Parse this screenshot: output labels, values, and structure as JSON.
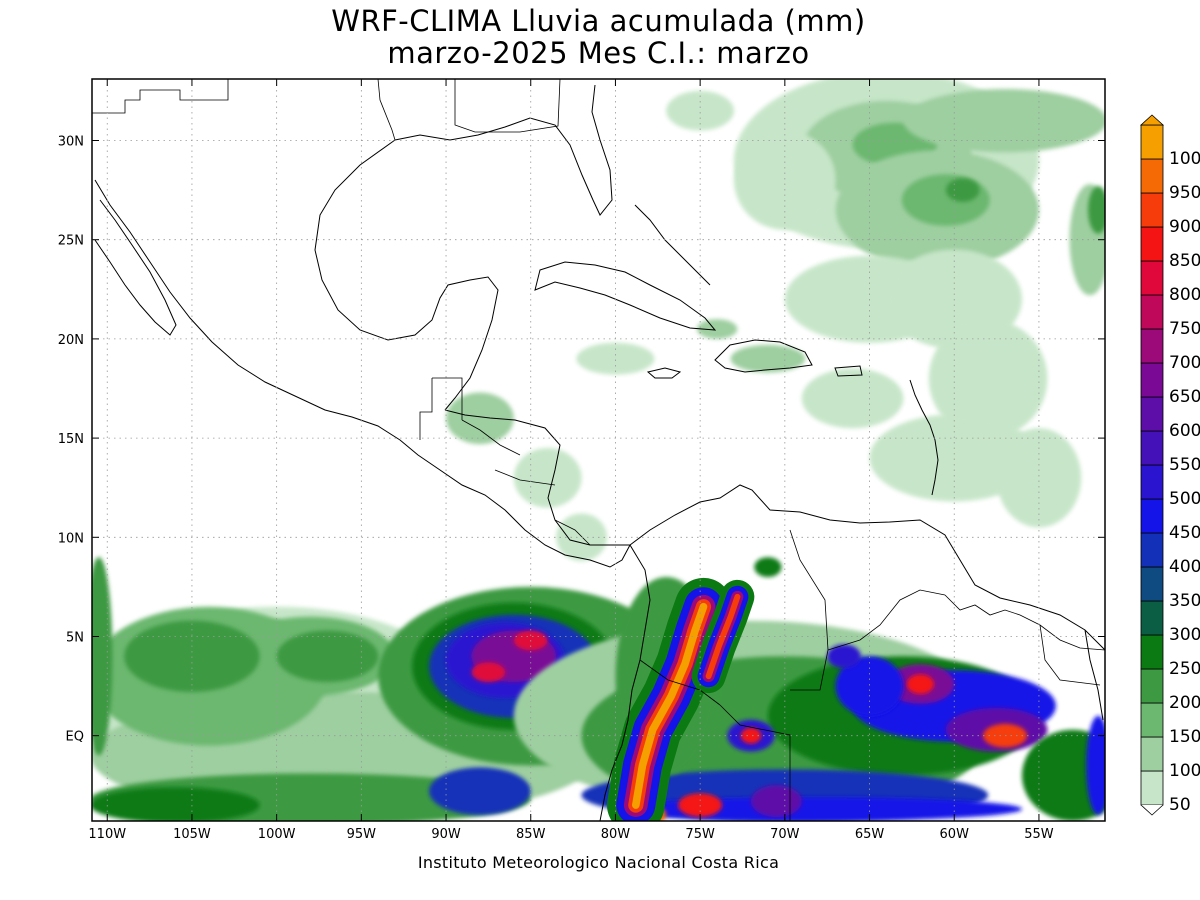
{
  "title_line1": "WRF-CLIMA Lluvia acumulada (mm)",
  "title_line2": "marzo-2025 Mes C.I.: marzo",
  "credit": "Instituto Meteorologico Nacional Costa Rica",
  "lon_ticks": [
    {
      "lon": -110,
      "label": "110W"
    },
    {
      "lon": -105,
      "label": "105W"
    },
    {
      "lon": -100,
      "label": "100W"
    },
    {
      "lon": -95,
      "label": "95W"
    },
    {
      "lon": -90,
      "label": "90W"
    },
    {
      "lon": -85,
      "label": "85W"
    },
    {
      "lon": -80,
      "label": "80W"
    },
    {
      "lon": -75,
      "label": "75W"
    },
    {
      "lon": -70,
      "label": "70W"
    },
    {
      "lon": -65,
      "label": "65W"
    },
    {
      "lon": -60,
      "label": "60W"
    },
    {
      "lon": -55,
      "label": "55W"
    }
  ],
  "lat_ticks": [
    {
      "lat": 30,
      "label": "30N"
    },
    {
      "lat": 25,
      "label": "25N"
    },
    {
      "lat": 20,
      "label": "20N"
    },
    {
      "lat": 15,
      "label": "15N"
    },
    {
      "lat": 10,
      "label": "10N"
    },
    {
      "lat": 5,
      "label": "5N"
    },
    {
      "lat": 0,
      "label": "EQ"
    }
  ],
  "extent": {
    "lon_min": -110.9,
    "lon_max": -51.1,
    "lat_min": -4.3,
    "lat_max": 33.1
  },
  "colorbar": {
    "levels": [
      {
        "label": "50",
        "color": "#c7e6c9"
      },
      {
        "label": "100",
        "color": "#9ecfa0"
      },
      {
        "label": "150",
        "color": "#6cb870"
      },
      {
        "label": "200",
        "color": "#3d9a42"
      },
      {
        "label": "250",
        "color": "#0c7a12"
      },
      {
        "label": "300",
        "color": "#0b5e44"
      },
      {
        "label": "350",
        "color": "#0f4a80"
      },
      {
        "label": "400",
        "color": "#1330b8"
      },
      {
        "label": "450",
        "color": "#1414e8"
      },
      {
        "label": "500",
        "color": "#2a14d0"
      },
      {
        "label": "550",
        "color": "#4410b8"
      },
      {
        "label": "600",
        "color": "#5e0ea8"
      },
      {
        "label": "650",
        "color": "#7a0a96"
      },
      {
        "label": "700",
        "color": "#9c0a7a"
      },
      {
        "label": "750",
        "color": "#c0085a"
      },
      {
        "label": "800",
        "color": "#e0083a"
      },
      {
        "label": "850",
        "color": "#f51414"
      },
      {
        "label": "900",
        "color": "#f53c0a"
      },
      {
        "label": "950",
        "color": "#f56a05"
      },
      {
        "label": "1000",
        "color": "#f5a000"
      }
    ]
  },
  "rain_zones": [
    {
      "lon": -100,
      "lat": 2,
      "rx": 11,
      "ry": 4.5,
      "level": "50"
    },
    {
      "lon": -96,
      "lat": -1,
      "rx": 15,
      "ry": 3.2,
      "level": "100"
    },
    {
      "lon": -104,
      "lat": 3,
      "rx": 7,
      "ry": 3.5,
      "level": "150"
    },
    {
      "lon": -98,
      "lat": 4,
      "rx": 5,
      "ry": 2,
      "level": "150"
    },
    {
      "lon": -105,
      "lat": 4,
      "rx": 4,
      "ry": 1.8,
      "level": "200"
    },
    {
      "lon": -98,
      "lat": -3.2,
      "rx": 13,
      "ry": 1.3,
      "level": "200"
    },
    {
      "lon": -106,
      "lat": -3.5,
      "rx": 5,
      "ry": 0.9,
      "level": "250"
    },
    {
      "lon": -110.5,
      "lat": 4,
      "rx": 0.8,
      "ry": 5,
      "level": "200"
    },
    {
      "lon": -97,
      "lat": 4,
      "rx": 3,
      "ry": 1.3,
      "level": "200"
    },
    {
      "lon": -85,
      "lat": 3,
      "rx": 9,
      "ry": 4.5,
      "level": "200"
    },
    {
      "lon": -86,
      "lat": 3.5,
      "rx": 6,
      "ry": 3.2,
      "level": "250"
    },
    {
      "lon": -86,
      "lat": 3.5,
      "rx": 5,
      "ry": 2.6,
      "level": "400"
    },
    {
      "lon": -86.5,
      "lat": 3.8,
      "rx": 3.5,
      "ry": 1.9,
      "level": "500"
    },
    {
      "lon": -86,
      "lat": 4,
      "rx": 2.5,
      "ry": 1.3,
      "level": "650"
    },
    {
      "lon": -85,
      "lat": 4.8,
      "rx": 1,
      "ry": 0.5,
      "level": "800"
    },
    {
      "lon": -87.5,
      "lat": 3.2,
      "rx": 1,
      "ry": 0.5,
      "level": "800"
    },
    {
      "lon": -88,
      "lat": -2.8,
      "rx": 3,
      "ry": 1.2,
      "level": "400"
    },
    {
      "lon": -72,
      "lat": 1,
      "rx": 14,
      "ry": 4.8,
      "level": "100"
    },
    {
      "lon": -70,
      "lat": 0,
      "rx": 12,
      "ry": 4,
      "level": "200"
    },
    {
      "lon": -63,
      "lat": 1,
      "rx": 8,
      "ry": 3,
      "level": "250"
    },
    {
      "lon": -70,
      "lat": -3,
      "rx": 12,
      "ry": 1.3,
      "level": "400"
    },
    {
      "lon": -68,
      "lat": -3.7,
      "rx": 12,
      "ry": 0.6,
      "level": "450"
    },
    {
      "lon": -75,
      "lat": -3.5,
      "rx": 1.3,
      "ry": 0.6,
      "level": "850"
    },
    {
      "lon": -70.5,
      "lat": -3.3,
      "rx": 1.5,
      "ry": 0.8,
      "level": "600"
    },
    {
      "lon": -72,
      "lat": 0,
      "rx": 1.4,
      "ry": 0.8,
      "level": "500"
    },
    {
      "lon": -72,
      "lat": 0,
      "rx": 0.6,
      "ry": 0.4,
      "level": "850"
    },
    {
      "lon": -60,
      "lat": 1.5,
      "rx": 6,
      "ry": 1.8,
      "level": "450"
    },
    {
      "lon": -62,
      "lat": 2.6,
      "rx": 2,
      "ry": 1,
      "level": "650"
    },
    {
      "lon": -62,
      "lat": 2.6,
      "rx": 0.8,
      "ry": 0.5,
      "level": "850"
    },
    {
      "lon": -57.5,
      "lat": 0.3,
      "rx": 3,
      "ry": 1.1,
      "level": "600"
    },
    {
      "lon": -57,
      "lat": 0,
      "rx": 1.3,
      "ry": 0.6,
      "level": "900"
    },
    {
      "lon": -65,
      "lat": 2.5,
      "rx": 2,
      "ry": 1.5,
      "level": "450"
    },
    {
      "lon": -66.5,
      "lat": 4,
      "rx": 1,
      "ry": 0.6,
      "level": "500"
    },
    {
      "lon": -53,
      "lat": -2,
      "rx": 3,
      "ry": 2.3,
      "level": "250"
    },
    {
      "lon": -51.5,
      "lat": -1.5,
      "rx": 0.7,
      "ry": 2.5,
      "level": "450"
    },
    {
      "lon": -78.3,
      "lat": -4,
      "rx": 1.3,
      "ry": 0.6,
      "level": "950"
    },
    {
      "lon": -77,
      "lat": 3,
      "rx": 3,
      "ry": 5,
      "level": "200"
    },
    {
      "lon": -71,
      "lat": 8.5,
      "rx": 0.8,
      "ry": 0.5,
      "level": "250"
    },
    {
      "lon": -64,
      "lat": 29,
      "rx": 9,
      "ry": 4.5,
      "level": "50"
    },
    {
      "lon": -64,
      "lat": 29.5,
      "rx": 5,
      "ry": 2.5,
      "level": "100"
    },
    {
      "lon": -63.5,
      "lat": 29.8,
      "rx": 2.5,
      "ry": 1.1,
      "level": "150"
    },
    {
      "lon": -61,
      "lat": 26.5,
      "rx": 6,
      "ry": 3,
      "level": "100"
    },
    {
      "lon": -60.5,
      "lat": 27,
      "rx": 2.6,
      "ry": 1.3,
      "level": "150"
    },
    {
      "lon": -59.5,
      "lat": 27.5,
      "rx": 1,
      "ry": 0.6,
      "level": "200"
    },
    {
      "lon": -57,
      "lat": 31,
      "rx": 6,
      "ry": 1.6,
      "level": "100"
    },
    {
      "lon": -52,
      "lat": 25,
      "rx": 1.2,
      "ry": 2.8,
      "level": "100"
    },
    {
      "lon": -51.5,
      "lat": 26.5,
      "rx": 0.6,
      "ry": 1.2,
      "level": "200"
    },
    {
      "lon": -70,
      "lat": 28,
      "rx": 3,
      "ry": 2.5,
      "level": "50"
    },
    {
      "lon": -65,
      "lat": 22,
      "rx": 5,
      "ry": 2.2,
      "level": "50"
    },
    {
      "lon": -60,
      "lat": 22,
      "rx": 4,
      "ry": 2.5,
      "level": "50"
    },
    {
      "lon": -58,
      "lat": 18,
      "rx": 3.5,
      "ry": 3,
      "level": "50"
    },
    {
      "lon": -60,
      "lat": 14,
      "rx": 5,
      "ry": 2.2,
      "level": "50"
    },
    {
      "lon": -55,
      "lat": 13,
      "rx": 2.5,
      "ry": 2.5,
      "level": "50"
    },
    {
      "lon": -71,
      "lat": 19,
      "rx": 2.2,
      "ry": 0.7,
      "level": "100"
    },
    {
      "lon": -80,
      "lat": 19,
      "rx": 2.3,
      "ry": 0.8,
      "level": "50"
    },
    {
      "lon": -74,
      "lat": 20.5,
      "rx": 1.2,
      "ry": 0.5,
      "level": "100"
    },
    {
      "lon": -84,
      "lat": 13,
      "rx": 2,
      "ry": 1.5,
      "level": "50"
    },
    {
      "lon": -82,
      "lat": 10,
      "rx": 1.5,
      "ry": 1.2,
      "level": "50"
    },
    {
      "lon": -88,
      "lat": 16,
      "rx": 2,
      "ry": 1.3,
      "level": "100"
    },
    {
      "lon": -66,
      "lat": 17,
      "rx": 3,
      "ry": 1.5,
      "level": "50"
    },
    {
      "lon": -75,
      "lat": 31.5,
      "rx": 2,
      "ry": 1,
      "level": "50"
    }
  ],
  "andes_band": {
    "points": [
      {
        "lon": -78.8,
        "lat": -3.5
      },
      {
        "lon": -78.4,
        "lat": -1.5
      },
      {
        "lon": -77.8,
        "lat": 0.3
      },
      {
        "lon": -76.7,
        "lat": 2.0
      },
      {
        "lon": -75.9,
        "lat": 3.6
      },
      {
        "lon": -75.3,
        "lat": 5.3
      },
      {
        "lon": -74.8,
        "lat": 6.5
      }
    ],
    "layers": [
      {
        "level": "250",
        "width": 3.4
      },
      {
        "level": "450",
        "width": 2.3
      },
      {
        "level": "700",
        "width": 1.4
      },
      {
        "level": "900",
        "width": 0.9
      },
      {
        "level": "1000",
        "width": 0.45
      }
    ]
  },
  "andes_band2": {
    "points": [
      {
        "lon": -74.5,
        "lat": 3.0
      },
      {
        "lon": -73.9,
        "lat": 4.5
      },
      {
        "lon": -73.2,
        "lat": 6.0
      },
      {
        "lon": -72.8,
        "lat": 7.0
      }
    ],
    "layers": [
      {
        "level": "250",
        "width": 2.0
      },
      {
        "level": "450",
        "width": 1.3
      },
      {
        "level": "700",
        "width": 0.7
      },
      {
        "level": "900",
        "width": 0.35
      }
    ]
  }
}
